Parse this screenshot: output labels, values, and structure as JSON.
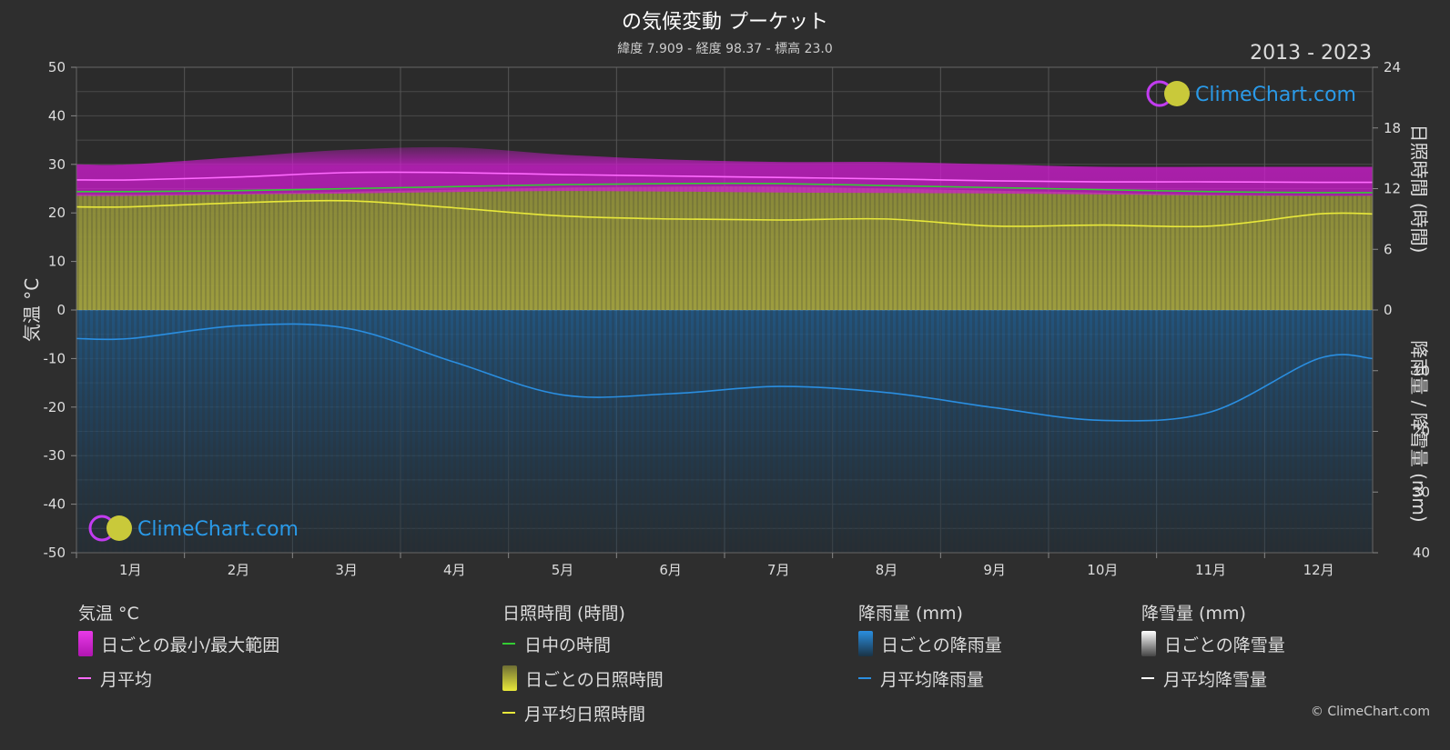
{
  "header": {
    "title": "の気候変動 プーケット",
    "subtitle": "緯度 7.909 - 経度 98.37 - 標高 23.0",
    "years": "2013 - 2023"
  },
  "watermark": "ClimeChart.com",
  "copyright": "© ClimeChart.com",
  "colors": {
    "background": "#2e2e2e",
    "temp_range": "#d11bd1",
    "temp_avg": "#ff6bff",
    "daylight": "#33cc33",
    "sunshine_fill": "#9a9a3a",
    "sunshine_avg": "#e8e83a",
    "rain_fill": "#1f5a8a",
    "rain_avg": "#2a8ee0",
    "snow_avg": "#ffffff"
  },
  "legend": {
    "temperature": {
      "header": "気温 °C",
      "range_label": "日ごとの最小/最大範囲",
      "avg_label": "月平均"
    },
    "sunshine": {
      "header": "日照時間 (時間)",
      "daylight_label": "日中の時間",
      "daily_label": "日ごとの日照時間",
      "avg_label": "月平均日照時間"
    },
    "rain": {
      "header": "降雨量 (mm)",
      "daily_label": "日ごとの降雨量",
      "avg_label": "月平均降雨量"
    },
    "snow": {
      "header": "降雪量 (mm)",
      "daily_label": "日ごとの降雪量",
      "avg_label": "月平均降雪量"
    }
  },
  "chart_data": {
    "type": "line",
    "categories": [
      "1月",
      "2月",
      "3月",
      "4月",
      "5月",
      "6月",
      "7月",
      "8月",
      "9月",
      "10月",
      "11月",
      "12月"
    ],
    "y_left": {
      "label": "気温 °C",
      "range": [
        -50,
        50
      ],
      "ticks": [
        50,
        40,
        30,
        20,
        10,
        0,
        -10,
        -20,
        -30,
        -40,
        -50
      ]
    },
    "y_right_top": {
      "label": "日照時間 (時間)",
      "range": [
        0,
        24
      ],
      "ticks": [
        24,
        18,
        12,
        6,
        0
      ]
    },
    "y_right_bottom": {
      "label": "降雨量 / 降雪量 (mm)",
      "range": [
        0,
        40
      ],
      "ticks": [
        10,
        20,
        30,
        40
      ]
    },
    "grid": true,
    "series": [
      {
        "name": "日ごとの最小/最大範囲",
        "unit": "°C",
        "min": [
          23.5,
          23.8,
          24.0,
          24.3,
          24.5,
          24.4,
          24.2,
          24.1,
          24.0,
          23.8,
          23.6,
          23.5
        ],
        "max": [
          30.0,
          31.5,
          33.0,
          33.5,
          32.0,
          31.0,
          30.5,
          30.5,
          30.0,
          29.5,
          29.5,
          29.5
        ]
      },
      {
        "name": "月平均",
        "unit": "°C",
        "values": [
          26.8,
          27.4,
          28.3,
          28.3,
          27.9,
          27.6,
          27.3,
          27.0,
          26.6,
          26.4,
          26.4,
          26.3
        ]
      },
      {
        "name": "日中の時間",
        "unit": "時間",
        "values": [
          11.7,
          11.8,
          12.0,
          12.2,
          12.4,
          12.5,
          12.5,
          12.3,
          12.1,
          11.9,
          11.7,
          11.6
        ]
      },
      {
        "name": "月平均日照時間",
        "unit": "時間",
        "values": [
          10.2,
          10.6,
          10.8,
          10.1,
          9.3,
          9.0,
          8.9,
          9.0,
          8.3,
          8.4,
          8.3,
          9.5
        ]
      },
      {
        "name": "月平均降雨量",
        "unit": "mm",
        "values": [
          4.7,
          2.6,
          3.0,
          8.6,
          14.0,
          13.8,
          12.6,
          13.6,
          16.1,
          18.2,
          16.8,
          8.0
        ]
      },
      {
        "name": "月平均降雪量",
        "unit": "mm",
        "values": [
          0,
          0,
          0,
          0,
          0,
          0,
          0,
          0,
          0,
          0,
          0,
          0
        ]
      }
    ]
  }
}
